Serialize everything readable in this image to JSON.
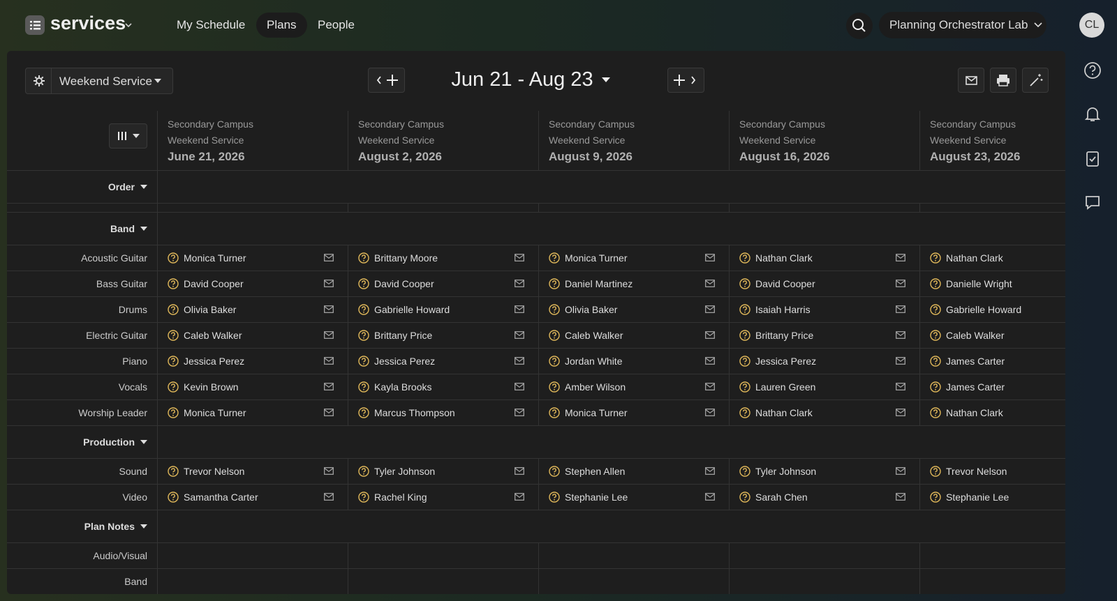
{
  "app": {
    "name": "services"
  },
  "nav": [
    "My Schedule",
    "Plans",
    "People"
  ],
  "org": "Planning Orchestrator Lab",
  "avatar": "CL",
  "service_type": "Weekend Service",
  "date_range": "Jun 21 - Aug 23",
  "plans": [
    {
      "campus": "Secondary Campus",
      "service": "Weekend Service",
      "date": "June 21, 2026"
    },
    {
      "campus": "Secondary Campus",
      "service": "Weekend Service",
      "date": "August 2, 2026"
    },
    {
      "campus": "Secondary Campus",
      "service": "Weekend Service",
      "date": "August 9, 2026"
    },
    {
      "campus": "Secondary Campus",
      "service": "Weekend Service",
      "date": "August 16, 2026"
    },
    {
      "campus": "Secondary Campus",
      "service": "Weekend Service",
      "date": "August 23, 2026"
    }
  ],
  "sections": [
    {
      "title": "Order",
      "rows": []
    },
    {
      "title": "Band",
      "rows": [
        {
          "label": "Acoustic Guitar",
          "people": [
            "Monica Turner",
            "Brittany Moore",
            "Monica Turner",
            "Nathan Clark",
            "Nathan Clark"
          ]
        },
        {
          "label": "Bass Guitar",
          "people": [
            "David Cooper",
            "David Cooper",
            "Daniel Martinez",
            "David Cooper",
            "Danielle Wright"
          ]
        },
        {
          "label": "Drums",
          "people": [
            "Olivia Baker",
            "Gabrielle Howard",
            "Olivia Baker",
            "Isaiah Harris",
            "Gabrielle Howard"
          ]
        },
        {
          "label": "Electric Guitar",
          "people": [
            "Caleb Walker",
            "Brittany Price",
            "Caleb Walker",
            "Brittany Price",
            "Caleb Walker"
          ]
        },
        {
          "label": "Piano",
          "people": [
            "Jessica Perez",
            "Jessica Perez",
            "Jordan White",
            "Jessica Perez",
            "James Carter"
          ]
        },
        {
          "label": "Vocals",
          "people": [
            "Kevin Brown",
            "Kayla Brooks",
            "Amber Wilson",
            "Lauren Green",
            "James Carter"
          ]
        },
        {
          "label": "Worship Leader",
          "people": [
            "Monica Turner",
            "Marcus Thompson",
            "Monica Turner",
            "Nathan Clark",
            "Nathan Clark"
          ]
        }
      ]
    },
    {
      "title": "Production",
      "rows": [
        {
          "label": "Sound",
          "people": [
            "Trevor Nelson",
            "Tyler Johnson",
            "Stephen Allen",
            "Tyler Johnson",
            "Trevor Nelson"
          ]
        },
        {
          "label": "Video",
          "people": [
            "Samantha Carter",
            "Rachel King",
            "Stephanie Lee",
            "Sarah Chen",
            "Stephanie Lee"
          ]
        }
      ]
    },
    {
      "title": "Plan Notes",
      "rows": [
        {
          "label": "Audio/Visual"
        },
        {
          "label": "Band"
        }
      ]
    }
  ]
}
